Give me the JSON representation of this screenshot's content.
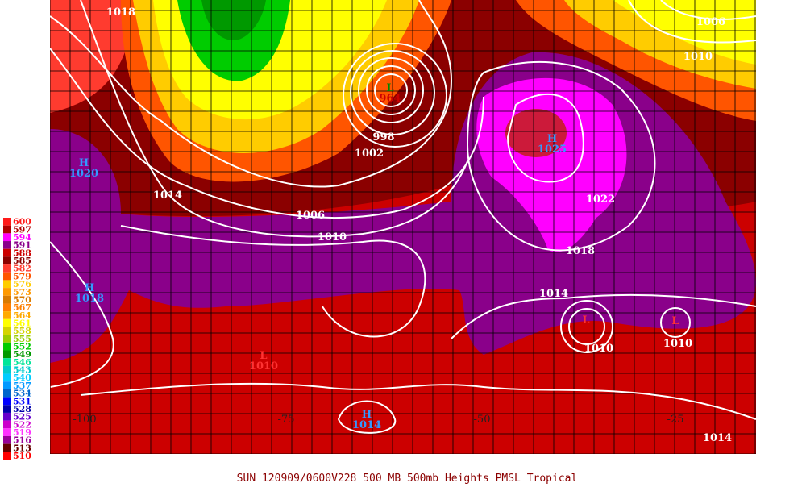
{
  "legend": [
    {
      "label": "600",
      "color": "#ff1a1a"
    },
    {
      "label": "597",
      "color": "#b00000"
    },
    {
      "label": "594",
      "color": "#ff00ff"
    },
    {
      "label": "591",
      "color": "#8a008a"
    },
    {
      "label": "588",
      "color": "#cc0000"
    },
    {
      "label": "585",
      "color": "#8b0000"
    },
    {
      "label": "582",
      "color": "#ff3b2f"
    },
    {
      "label": "579",
      "color": "#ff5500"
    },
    {
      "label": "576",
      "color": "#ffcc00"
    },
    {
      "label": "573",
      "color": "#ff9900"
    },
    {
      "label": "570",
      "color": "#d97a00"
    },
    {
      "label": "567",
      "color": "#ff8000"
    },
    {
      "label": "564",
      "color": "#ffaa00"
    },
    {
      "label": "561",
      "color": "#ffff00"
    },
    {
      "label": "558",
      "color": "#d4d400"
    },
    {
      "label": "555",
      "color": "#99cc00"
    },
    {
      "label": "552",
      "color": "#00cc00"
    },
    {
      "label": "549",
      "color": "#009900"
    },
    {
      "label": "546",
      "color": "#00e699"
    },
    {
      "label": "543",
      "color": "#00cccc"
    },
    {
      "label": "540",
      "color": "#00ccff"
    },
    {
      "label": "537",
      "color": "#0099ff"
    },
    {
      "label": "534",
      "color": "#0066cc"
    },
    {
      "label": "531",
      "color": "#0000ff"
    },
    {
      "label": "528",
      "color": "#0000aa"
    },
    {
      "label": "525",
      "color": "#6600cc"
    },
    {
      "label": "522",
      "color": "#cc00cc"
    },
    {
      "label": "519",
      "color": "#ff33ff"
    },
    {
      "label": "516",
      "color": "#990099"
    },
    {
      "label": "513",
      "color": "#660000"
    },
    {
      "label": "510",
      "color": "#ff0000"
    }
  ],
  "isobar_labels": [
    "1018",
    "1006",
    "1010",
    "998",
    "1002",
    "1014",
    "1006",
    "1010",
    "1022",
    "1018",
    "1014",
    "1010",
    "1010",
    "1014"
  ],
  "centers": [
    {
      "letter": "L",
      "value": "964"
    },
    {
      "letter": "H",
      "value": "1025"
    },
    {
      "letter": "H",
      "value": "1020"
    },
    {
      "letter": "H",
      "value": "1018"
    },
    {
      "letter": "H",
      "value": "1014"
    },
    {
      "letter": "L",
      "value": "1010"
    },
    {
      "letter": "L"
    },
    {
      "letter": "L"
    }
  ],
  "longitude_labels": [
    "-100",
    "-75",
    "-50",
    "-25"
  ],
  "caption": "SUN 120909/0600V228  500 MB 500mb Heights PMSL Tropical"
}
